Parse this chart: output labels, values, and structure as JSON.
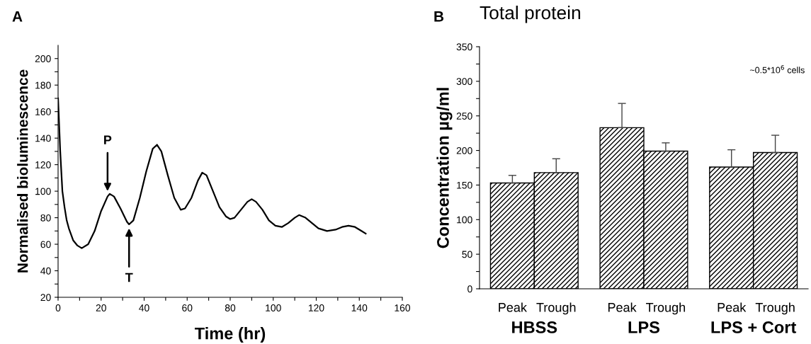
{
  "chart_data": [
    {
      "type": "line",
      "xlabel": "Time (hr)",
      "ylabel": "Normalised bioluminescence",
      "annotations": [
        "A",
        {
          "text": "P",
          "x": 23,
          "y": 100
        },
        {
          "text": "T",
          "x": 33,
          "y": 72
        }
      ],
      "series": [
        {
          "color": "#000000",
          "x": [
            0,
            1,
            2,
            3,
            4,
            5,
            7,
            9,
            11,
            14,
            17,
            20,
            23,
            24,
            26,
            29,
            32,
            33,
            35,
            38,
            41,
            44,
            46,
            48,
            51,
            54,
            57,
            59,
            62,
            65,
            67,
            69,
            72,
            75,
            78,
            80,
            82,
            85,
            88,
            90,
            92,
            95,
            98,
            101,
            104,
            107,
            110,
            112,
            115,
            118,
            121,
            125,
            129,
            132,
            135,
            138,
            141,
            143
          ],
          "values": [
            170,
            130,
            100,
            88,
            78,
            72,
            63,
            59,
            57,
            60,
            70,
            85,
            96,
            98,
            96,
            87,
            77,
            75,
            78,
            95,
            115,
            132,
            135,
            130,
            112,
            95,
            86,
            87,
            95,
            108,
            114,
            112,
            100,
            88,
            81,
            79,
            80,
            86,
            92,
            94,
            92,
            86,
            78,
            74,
            73,
            76,
            80,
            82,
            80,
            76,
            72,
            70,
            71,
            73,
            74,
            73,
            70,
            68
          ]
        }
      ],
      "xlim": [
        0,
        160
      ],
      "ylim": [
        20,
        210
      ],
      "xticks": [
        0,
        {
          "value": 10,
          "label": null
        },
        20,
        {
          "value": 30,
          "label": null
        },
        40,
        {
          "value": 50,
          "label": null
        },
        60,
        {
          "value": 70,
          "label": null
        },
        80,
        {
          "value": 90,
          "label": null
        },
        100,
        {
          "value": 110,
          "label": null
        },
        120,
        {
          "value": 130,
          "label": null
        },
        140,
        {
          "value": 150,
          "label": null
        },
        160
      ],
      "yticks": [
        20,
        {
          "value": 30,
          "label": null
        },
        40,
        {
          "value": 50,
          "label": null
        },
        60,
        {
          "value": 70,
          "label": null
        },
        80,
        {
          "value": 90,
          "label": null
        },
        100,
        {
          "value": 110,
          "label": null
        },
        120,
        {
          "value": 130,
          "label": null
        },
        140,
        {
          "value": 150,
          "label": null
        },
        160,
        {
          "value": 170,
          "label": null
        },
        180,
        {
          "value": 190,
          "label": null
        },
        200
      ],
      "grid": false,
      "legend": false
    },
    {
      "type": "bar",
      "title": "Total protein",
      "ylabel": "Concentration µg/ml",
      "annotations": [
        "B",
        "~0.5*10$^{6}$ cells"
      ],
      "categories": [
        "HBSS",
        "LPS",
        "LPS + Cort"
      ],
      "series": [
        {
          "name": "Peak",
          "color": "#000000",
          "values": [
            153,
            233,
            176
          ],
          "errors": [
            [
              153,
              164
            ],
            [
              233,
              268
            ],
            [
              176,
              201
            ]
          ]
        },
        {
          "name": "Trough",
          "color": "#000000",
          "values": [
            168,
            199,
            197
          ],
          "errors": [
            [
              168,
              188
            ],
            [
              199,
              211
            ],
            [
              197,
              222
            ]
          ]
        }
      ],
      "ylim": [
        0,
        350
      ],
      "yticks": [
        0,
        {
          "value": 25,
          "label": null
        },
        50,
        {
          "value": 75,
          "label": null
        },
        100,
        {
          "value": 125,
          "label": null
        },
        150,
        {
          "value": 175,
          "label": null
        },
        200,
        {
          "value": 225,
          "label": null
        },
        250,
        {
          "value": 275,
          "label": null
        },
        300,
        {
          "value": 325,
          "label": null
        },
        350
      ],
      "grid": false,
      "legend": false
    }
  ]
}
